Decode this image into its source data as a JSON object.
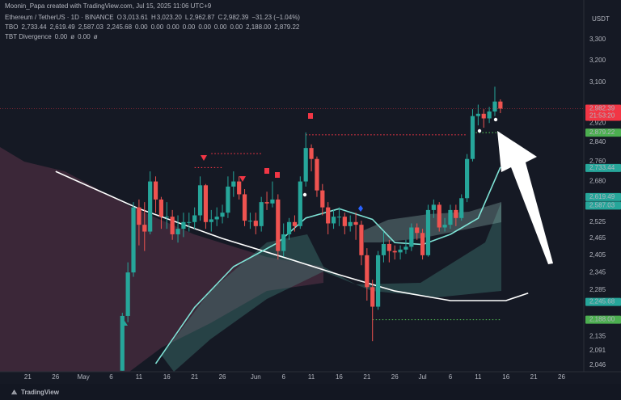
{
  "header": {
    "credit": "Moonin_Papa created with TradingView.com, Jul 15, 2025 11:06 UTC+9",
    "row1": [
      "Ethereum / TetherUS · 1D · BINANCE",
      "O",
      "3,013.61",
      "H",
      "3,023.20",
      "L",
      "2,962.87",
      "C",
      "2,982.39",
      "−31.23 (−1.04%)"
    ],
    "row2": [
      "TBO",
      "2,733.44",
      "2,619.49",
      "2,587.03",
      "2,245.68",
      "0.00",
      "0.00",
      "0.00",
      "0.00",
      "0.00",
      "0.00",
      "0.00",
      "2,188.00",
      "2,879.22"
    ],
    "row3": [
      "TBT Divergence",
      "0.00",
      "ø",
      "0.00",
      "ø"
    ],
    "currency": "USDT",
    "countdown": "21:53:20",
    "brand": "TradingView"
  },
  "chart_data": {
    "type": "candlestick",
    "log": true,
    "grid": false,
    "up_color": "#26a69a",
    "down_color": "#ef5350",
    "xlim": [
      "2025-04-16",
      "2025-07-30"
    ],
    "ylim": [
      2027,
      3498
    ],
    "x": [
      "2025-05-08",
      "2025-05-09",
      "2025-05-10",
      "2025-05-11",
      "2025-05-12",
      "2025-05-13",
      "2025-05-14",
      "2025-05-15",
      "2025-05-16",
      "2025-05-17",
      "2025-05-18",
      "2025-05-19",
      "2025-05-20",
      "2025-05-21",
      "2025-05-22",
      "2025-05-23",
      "2025-05-24",
      "2025-05-25",
      "2025-05-26",
      "2025-05-27",
      "2025-05-28",
      "2025-05-29",
      "2025-05-30",
      "2025-05-31",
      "2025-06-01",
      "2025-06-02",
      "2025-06-03",
      "2025-06-04",
      "2025-06-05",
      "2025-06-06",
      "2025-06-07",
      "2025-06-08",
      "2025-06-09",
      "2025-06-10",
      "2025-06-11",
      "2025-06-12",
      "2025-06-13",
      "2025-06-14",
      "2025-06-15",
      "2025-06-16",
      "2025-06-17",
      "2025-06-18",
      "2025-06-19",
      "2025-06-20",
      "2025-06-21",
      "2025-06-22",
      "2025-06-23",
      "2025-06-24",
      "2025-06-25",
      "2025-06-26",
      "2025-06-27",
      "2025-06-28",
      "2025-06-29",
      "2025-06-30",
      "2025-07-01",
      "2025-07-02",
      "2025-07-03",
      "2025-07-04",
      "2025-07-05",
      "2025-07-06",
      "2025-07-07",
      "2025-07-08",
      "2025-07-09",
      "2025-07-10",
      "2025-07-11",
      "2025-07-12",
      "2025-07-13",
      "2025-07-14",
      "2025-07-15"
    ],
    "open": [
      2030,
      2200,
      2345,
      2580,
      2515,
      2490,
      2680,
      2610,
      2545,
      2545,
      2480,
      2500,
      2525,
      2525,
      2550,
      2665,
      2525,
      2535,
      2545,
      2560,
      2660,
      2680,
      2630,
      2530,
      2530,
      2510,
      2600,
      2595,
      2610,
      2420,
      2480,
      2525,
      2510,
      2680,
      2815,
      2770,
      2645,
      2580,
      2520,
      2545,
      2545,
      2510,
      2525,
      2515,
      2405,
      2295,
      2230,
      2405,
      2445,
      2420,
      2415,
      2425,
      2435,
      2505,
      2485,
      2405,
      2570,
      2590,
      2505,
      2515,
      2570,
      2540,
      2615,
      2770,
      2950,
      2960,
      2940,
      2970,
      3013.61
    ],
    "high": [
      2210,
      2380,
      2600,
      2610,
      2600,
      2720,
      2700,
      2620,
      2600,
      2570,
      2550,
      2560,
      2560,
      2580,
      2700,
      2670,
      2570,
      2580,
      2590,
      2700,
      2720,
      2700,
      2650,
      2560,
      2560,
      2620,
      2640,
      2680,
      2630,
      2520,
      2540,
      2550,
      2700,
      2880,
      2830,
      2780,
      2670,
      2600,
      2570,
      2580,
      2560,
      2550,
      2560,
      2530,
      2430,
      2320,
      2420,
      2490,
      2460,
      2440,
      2440,
      2460,
      2520,
      2520,
      2500,
      2590,
      2610,
      2600,
      2540,
      2590,
      2590,
      2630,
      2790,
      2980,
      3000,
      2980,
      2990,
      3080,
      3023.2
    ],
    "low": [
      2030,
      2180,
      2330,
      2440,
      2420,
      2480,
      2560,
      2500,
      2500,
      2460,
      2450,
      2470,
      2490,
      2500,
      2530,
      2500,
      2490,
      2510,
      2520,
      2540,
      2620,
      2610,
      2510,
      2500,
      2480,
      2490,
      2570,
      2580,
      2390,
      2400,
      2460,
      2490,
      2500,
      2660,
      2720,
      2620,
      2550,
      2480,
      2500,
      2510,
      2480,
      2490,
      2460,
      2370,
      2250,
      2120,
      2220,
      2380,
      2380,
      2390,
      2390,
      2410,
      2420,
      2460,
      2390,
      2400,
      2540,
      2490,
      2490,
      2500,
      2510,
      2530,
      2600,
      2760,
      2910,
      2900,
      2920,
      2950,
      2962.87
    ],
    "close": [
      2200,
      2345,
      2580,
      2515,
      2490,
      2680,
      2610,
      2545,
      2545,
      2480,
      2500,
      2525,
      2525,
      2550,
      2665,
      2525,
      2535,
      2545,
      2560,
      2660,
      2680,
      2630,
      2530,
      2530,
      2510,
      2600,
      2595,
      2610,
      2420,
      2480,
      2525,
      2510,
      2680,
      2815,
      2770,
      2645,
      2580,
      2520,
      2545,
      2545,
      2510,
      2525,
      2515,
      2405,
      2295,
      2230,
      2405,
      2445,
      2420,
      2415,
      2425,
      2435,
      2505,
      2485,
      2405,
      2570,
      2590,
      2505,
      2515,
      2570,
      2540,
      2615,
      2770,
      2950,
      2960,
      2940,
      2970,
      3013.61,
      2982.39
    ],
    "lines": [
      {
        "color": "#ffffff",
        "x": [
          "2025-04-26",
          "2025-05-11",
          "2025-05-26",
          "2025-06-06",
          "2025-06-16",
          "2025-06-26",
          "2025-07-06",
          "2025-07-16",
          "2025-07-20"
        ],
        "values": [
          2720,
          2575,
          2465,
          2398,
          2337,
          2282,
          2250,
          2250,
          2275
        ]
      },
      {
        "color": "#7fe3d6",
        "x": [
          "2025-05-14",
          "2025-05-21",
          "2025-05-28",
          "2025-06-05",
          "2025-06-10",
          "2025-06-16",
          "2025-06-22",
          "2025-06-26",
          "2025-07-01",
          "2025-07-06",
          "2025-07-11",
          "2025-07-15"
        ],
        "values": [
          2051,
          2228,
          2365,
          2450,
          2540,
          2575,
          2535,
          2450,
          2443,
          2480,
          2539,
          2737
        ]
      }
    ],
    "levels": [
      {
        "value": 2735,
        "from": "2025-05-21",
        "to": "2025-05-26",
        "color": "#f23645"
      },
      {
        "value": 2792,
        "from": "2025-05-24",
        "to": "2025-06-02",
        "color": "#f23645"
      },
      {
        "value": 2870,
        "from": "2025-06-10",
        "to": "2025-07-09",
        "color": "#f23645"
      },
      {
        "value": 2879.22,
        "from": "2025-07-10",
        "to": "2025-07-15",
        "color": "#4caf50"
      },
      {
        "value": 2188,
        "from": "2025-06-22",
        "to": "2025-07-15",
        "color": "#4caf50"
      }
    ],
    "xticks": [
      {
        "value": "2025-04-21",
        "label": "21"
      },
      {
        "value": "2025-04-26",
        "label": "26"
      },
      {
        "value": "2025-05-01",
        "label": "May"
      },
      {
        "value": "2025-05-06",
        "label": "6"
      },
      {
        "value": "2025-05-11",
        "label": "11"
      },
      {
        "value": "2025-05-16",
        "label": "16"
      },
      {
        "value": "2025-05-21",
        "label": "21"
      },
      {
        "value": "2025-05-26",
        "label": "26"
      },
      {
        "value": "2025-06-01",
        "label": "Jun"
      },
      {
        "value": "2025-06-06",
        "label": "6"
      },
      {
        "value": "2025-06-11",
        "label": "11"
      },
      {
        "value": "2025-06-16",
        "label": "16"
      },
      {
        "value": "2025-06-21",
        "label": "21"
      },
      {
        "value": "2025-06-26",
        "label": "26"
      },
      {
        "value": "2025-07-01",
        "label": "Jul"
      },
      {
        "value": "2025-07-06",
        "label": "6"
      },
      {
        "value": "2025-07-11",
        "label": "11"
      },
      {
        "value": "2025-07-16",
        "label": "16"
      },
      {
        "value": "2025-07-21",
        "label": "21"
      },
      {
        "value": "2025-07-26",
        "label": "26"
      }
    ],
    "yticks": [
      {
        "value": 3300,
        "label": "3,300"
      },
      {
        "value": 3200,
        "label": "3,200"
      },
      {
        "value": 3100,
        "label": "3,100"
      },
      {
        "value": 2920,
        "label": "2,920"
      },
      {
        "value": 2840,
        "label": "2,840"
      },
      {
        "value": 2760,
        "label": "2,760"
      },
      {
        "value": 2680,
        "label": "2,680"
      },
      {
        "value": 2525,
        "label": "2,525"
      },
      {
        "value": 2465,
        "label": "2,465"
      },
      {
        "value": 2405,
        "label": "2,405"
      },
      {
        "value": 2345,
        "label": "2,345"
      },
      {
        "value": 2285,
        "label": "2,285"
      },
      {
        "value": 2135,
        "label": "2,135"
      },
      {
        "value": 2091,
        "label": "2,091"
      },
      {
        "value": 2046,
        "label": "2,046"
      }
    ],
    "price_labels": [
      {
        "value": 2982.39,
        "label": "2,982.39",
        "color": "#f23645"
      },
      {
        "value": 2879.22,
        "label": "2,879.22",
        "color": "#4caf50"
      },
      {
        "value": 2733.44,
        "label": "2,733.44",
        "color": "#26a69a"
      },
      {
        "value": 2619.49,
        "label": "2,619.49",
        "color": "#26a69a"
      },
      {
        "value": 2587.03,
        "label": "2,587.03",
        "color": "#26a69a"
      },
      {
        "value": 2245.68,
        "label": "2,245.68",
        "color": "#26a69a"
      },
      {
        "value": 2188,
        "label": "2,188.00",
        "color": "#4caf50"
      }
    ]
  }
}
